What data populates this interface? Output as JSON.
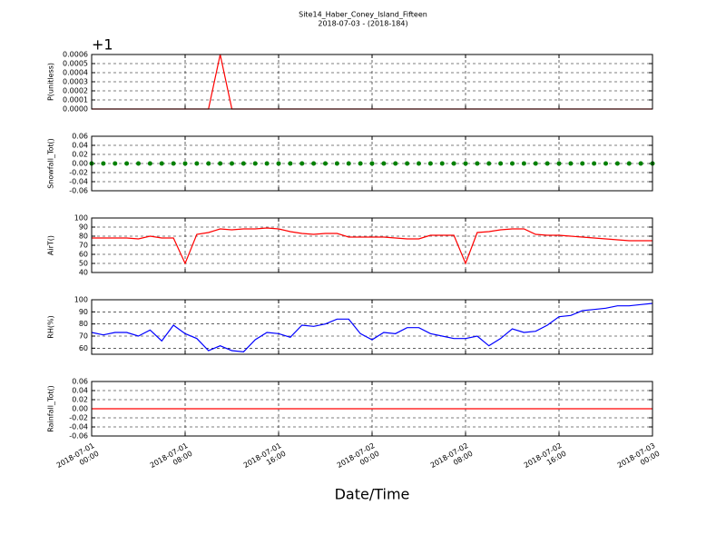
{
  "chart_data": [
    {
      "type": "line",
      "title": "Site14_Haber_Coney_Island_Fifteen",
      "subtitle": "2018-07-03 - (2018-184)",
      "offset_text": "+1",
      "ylabel": "P(unitless)",
      "ylim": [
        0,
        0.0006
      ],
      "yticks": [
        {
          "value": 0,
          "label": "0.0000"
        },
        {
          "value": 0.0001,
          "label": "0.0001"
        },
        {
          "value": 0.0002,
          "label": "0.0002"
        },
        {
          "value": 0.0003,
          "label": "0.0003"
        },
        {
          "value": 0.0004,
          "label": "0.0004"
        },
        {
          "value": 0.0005,
          "label": "0.0005"
        },
        {
          "value": 0.0006,
          "label": "0.0006"
        }
      ],
      "grid": true,
      "color": "#ff0000",
      "x": [
        "2018-07-01 00:00",
        "2018-07-01 01:00",
        "2018-07-01 02:00",
        "2018-07-01 03:00",
        "2018-07-01 04:00",
        "2018-07-01 05:00",
        "2018-07-01 06:00",
        "2018-07-01 07:00",
        "2018-07-01 08:00",
        "2018-07-01 09:00",
        "2018-07-01 10:00",
        "2018-07-01 11:00",
        "2018-07-01 12:00",
        "2018-07-01 13:00",
        "2018-07-01 14:00",
        "2018-07-01 15:00",
        "2018-07-01 16:00",
        "2018-07-01 17:00",
        "2018-07-01 18:00",
        "2018-07-01 19:00",
        "2018-07-01 20:00",
        "2018-07-01 21:00",
        "2018-07-01 22:00",
        "2018-07-01 23:00",
        "2018-07-02 00:00",
        "2018-07-02 01:00",
        "2018-07-02 02:00",
        "2018-07-02 03:00",
        "2018-07-02 04:00",
        "2018-07-02 05:00",
        "2018-07-02 06:00",
        "2018-07-02 07:00",
        "2018-07-02 08:00",
        "2018-07-02 09:00",
        "2018-07-02 10:00",
        "2018-07-02 11:00",
        "2018-07-02 12:00",
        "2018-07-02 13:00",
        "2018-07-02 14:00",
        "2018-07-02 15:00",
        "2018-07-02 16:00",
        "2018-07-02 17:00",
        "2018-07-02 18:00",
        "2018-07-02 19:00",
        "2018-07-02 20:00",
        "2018-07-02 21:00",
        "2018-07-02 22:00",
        "2018-07-02 23:00",
        "2018-07-03 00:00"
      ],
      "values": [
        0,
        0,
        0,
        0,
        0,
        0,
        0,
        0,
        0,
        0,
        0,
        0.0006,
        0,
        0,
        0,
        0,
        0,
        0,
        0,
        0,
        0,
        0,
        0,
        0,
        0,
        0,
        0,
        0,
        0,
        0,
        0,
        0,
        0,
        0,
        0,
        0,
        0,
        0,
        0,
        0,
        0,
        0,
        0,
        0,
        0,
        0,
        0,
        0,
        0
      ]
    },
    {
      "type": "scatter",
      "ylabel": "Snowfall_Tot()",
      "ylim": [
        -0.06,
        0.06
      ],
      "yticks": [
        -0.06,
        -0.04,
        -0.02,
        {
          "value": 0,
          "label": "0.00"
        },
        0.02,
        0.04,
        0.06
      ],
      "grid": true,
      "color": "#008000",
      "x": [
        "2018-07-01 00:00",
        "2018-07-01 01:00",
        "2018-07-01 02:00",
        "2018-07-01 03:00",
        "2018-07-01 04:00",
        "2018-07-01 05:00",
        "2018-07-01 06:00",
        "2018-07-01 07:00",
        "2018-07-01 08:00",
        "2018-07-01 09:00",
        "2018-07-01 10:00",
        "2018-07-01 11:00",
        "2018-07-01 12:00",
        "2018-07-01 13:00",
        "2018-07-01 14:00",
        "2018-07-01 15:00",
        "2018-07-01 16:00",
        "2018-07-01 17:00",
        "2018-07-01 18:00",
        "2018-07-01 19:00",
        "2018-07-01 20:00",
        "2018-07-01 21:00",
        "2018-07-01 22:00",
        "2018-07-01 23:00",
        "2018-07-02 00:00",
        "2018-07-02 01:00",
        "2018-07-02 02:00",
        "2018-07-02 03:00",
        "2018-07-02 04:00",
        "2018-07-02 05:00",
        "2018-07-02 06:00",
        "2018-07-02 07:00",
        "2018-07-02 08:00",
        "2018-07-02 09:00",
        "2018-07-02 10:00",
        "2018-07-02 11:00",
        "2018-07-02 12:00",
        "2018-07-02 13:00",
        "2018-07-02 14:00",
        "2018-07-02 15:00",
        "2018-07-02 16:00",
        "2018-07-02 17:00",
        "2018-07-02 18:00",
        "2018-07-02 19:00",
        "2018-07-02 20:00",
        "2018-07-02 21:00",
        "2018-07-02 22:00",
        "2018-07-02 23:00",
        "2018-07-03 00:00"
      ],
      "values": [
        0,
        0,
        0,
        0,
        0,
        0,
        0,
        0,
        0,
        0,
        0,
        0,
        0,
        0,
        0,
        0,
        0,
        0,
        0,
        0,
        0,
        0,
        0,
        0,
        0,
        0,
        0,
        0,
        0,
        0,
        0,
        0,
        0,
        0,
        0,
        0,
        0,
        0,
        0,
        0,
        0,
        0,
        0,
        0,
        0,
        0,
        0,
        0,
        0
      ]
    },
    {
      "type": "line",
      "ylabel": "AirT()",
      "ylim": [
        40,
        100
      ],
      "yticks": [
        40,
        50,
        60,
        70,
        80,
        90,
        100
      ],
      "grid": true,
      "color": "#ff0000",
      "x": [
        "2018-07-01 00:00",
        "2018-07-01 01:00",
        "2018-07-01 02:00",
        "2018-07-01 03:00",
        "2018-07-01 04:00",
        "2018-07-01 05:00",
        "2018-07-01 06:00",
        "2018-07-01 07:00",
        "2018-07-01 08:00",
        "2018-07-01 09:00",
        "2018-07-01 10:00",
        "2018-07-01 11:00",
        "2018-07-01 12:00",
        "2018-07-01 13:00",
        "2018-07-01 14:00",
        "2018-07-01 15:00",
        "2018-07-01 16:00",
        "2018-07-01 17:00",
        "2018-07-01 18:00",
        "2018-07-01 19:00",
        "2018-07-01 20:00",
        "2018-07-01 21:00",
        "2018-07-01 22:00",
        "2018-07-01 23:00",
        "2018-07-02 00:00",
        "2018-07-02 01:00",
        "2018-07-02 02:00",
        "2018-07-02 03:00",
        "2018-07-02 04:00",
        "2018-07-02 05:00",
        "2018-07-02 06:00",
        "2018-07-02 07:00",
        "2018-07-02 08:00",
        "2018-07-02 09:00",
        "2018-07-02 10:00",
        "2018-07-02 11:00",
        "2018-07-02 12:00",
        "2018-07-02 13:00",
        "2018-07-02 14:00",
        "2018-07-02 15:00",
        "2018-07-02 16:00",
        "2018-07-02 17:00",
        "2018-07-02 18:00",
        "2018-07-02 19:00",
        "2018-07-02 20:00",
        "2018-07-02 21:00",
        "2018-07-02 22:00",
        "2018-07-02 23:00",
        "2018-07-03 00:00"
      ],
      "values": [
        78,
        78,
        78,
        78,
        77,
        80,
        78,
        78,
        50,
        82,
        84,
        88,
        87,
        88,
        88,
        89,
        88,
        85,
        83,
        82,
        83,
        83,
        79,
        79,
        79,
        79,
        78,
        77,
        77,
        81,
        81,
        81,
        50,
        84,
        85,
        87,
        88,
        88,
        82,
        81,
        81,
        80,
        79,
        78,
        77,
        76,
        75,
        75,
        75
      ]
    },
    {
      "type": "line",
      "ylabel": "RH(%)",
      "ylim": [
        55,
        100
      ],
      "yticks": [
        60,
        70,
        80,
        90,
        100
      ],
      "grid": true,
      "color": "#0000ff",
      "x": [
        "2018-07-01 00:00",
        "2018-07-01 01:00",
        "2018-07-01 02:00",
        "2018-07-01 03:00",
        "2018-07-01 04:00",
        "2018-07-01 05:00",
        "2018-07-01 06:00",
        "2018-07-01 07:00",
        "2018-07-01 08:00",
        "2018-07-01 09:00",
        "2018-07-01 10:00",
        "2018-07-01 11:00",
        "2018-07-01 12:00",
        "2018-07-01 13:00",
        "2018-07-01 14:00",
        "2018-07-01 15:00",
        "2018-07-01 16:00",
        "2018-07-01 17:00",
        "2018-07-01 18:00",
        "2018-07-01 19:00",
        "2018-07-01 20:00",
        "2018-07-01 21:00",
        "2018-07-01 22:00",
        "2018-07-01 23:00",
        "2018-07-02 00:00",
        "2018-07-02 01:00",
        "2018-07-02 02:00",
        "2018-07-02 03:00",
        "2018-07-02 04:00",
        "2018-07-02 05:00",
        "2018-07-02 06:00",
        "2018-07-02 07:00",
        "2018-07-02 08:00",
        "2018-07-02 09:00",
        "2018-07-02 10:00",
        "2018-07-02 11:00",
        "2018-07-02 12:00",
        "2018-07-02 13:00",
        "2018-07-02 14:00",
        "2018-07-02 15:00",
        "2018-07-02 16:00",
        "2018-07-02 17:00",
        "2018-07-02 18:00",
        "2018-07-02 19:00",
        "2018-07-02 20:00",
        "2018-07-02 21:00",
        "2018-07-02 22:00",
        "2018-07-02 23:00",
        "2018-07-03 00:00"
      ],
      "values": [
        73,
        71,
        73,
        73,
        70,
        75,
        66,
        79,
        72,
        68,
        58,
        62,
        58,
        57,
        67,
        73,
        72,
        69,
        79,
        78,
        80,
        84,
        84,
        72,
        67,
        73,
        72,
        77,
        77,
        72,
        70,
        68,
        68,
        70,
        62,
        68,
        76,
        73,
        74,
        79,
        86,
        87,
        91,
        92,
        93,
        95,
        95,
        96,
        97
      ]
    },
    {
      "type": "line",
      "ylabel": "Rainfall_Tot()",
      "xlabel": "Date/Time",
      "ylim": [
        -0.06,
        0.06
      ],
      "yticks": [
        -0.06,
        -0.04,
        -0.02,
        {
          "value": 0,
          "label": "0.00"
        },
        0.02,
        0.04,
        0.06
      ],
      "grid": true,
      "color": "#ff0000",
      "xlim": [
        "2018-07-01 00:00",
        "2018-07-03 00:00"
      ],
      "xticks": [
        {
          "value": "2018-07-01 00:00",
          "label": "2018-07-01\n00:00"
        },
        {
          "value": "2018-07-01 08:00",
          "label": "2018-07-01\n08:00"
        },
        {
          "value": "2018-07-01 16:00",
          "label": "2018-07-01\n16:00"
        },
        {
          "value": "2018-07-02 00:00",
          "label": "2018-07-02\n00:00"
        },
        {
          "value": "2018-07-02 08:00",
          "label": "2018-07-02\n08:00"
        },
        {
          "value": "2018-07-02 16:00",
          "label": "2018-07-02\n16:00"
        },
        {
          "value": "2018-07-03 00:00",
          "label": "2018-07-03\n00:00"
        }
      ],
      "x": [
        "2018-07-01 00:00",
        "2018-07-01 01:00",
        "2018-07-01 02:00",
        "2018-07-01 03:00",
        "2018-07-01 04:00",
        "2018-07-01 05:00",
        "2018-07-01 06:00",
        "2018-07-01 07:00",
        "2018-07-01 08:00",
        "2018-07-01 09:00",
        "2018-07-01 10:00",
        "2018-07-01 11:00",
        "2018-07-01 12:00",
        "2018-07-01 13:00",
        "2018-07-01 14:00",
        "2018-07-01 15:00",
        "2018-07-01 16:00",
        "2018-07-01 17:00",
        "2018-07-01 18:00",
        "2018-07-01 19:00",
        "2018-07-01 20:00",
        "2018-07-01 21:00",
        "2018-07-01 22:00",
        "2018-07-01 23:00",
        "2018-07-02 00:00",
        "2018-07-02 01:00",
        "2018-07-02 02:00",
        "2018-07-02 03:00",
        "2018-07-02 04:00",
        "2018-07-02 05:00",
        "2018-07-02 06:00",
        "2018-07-02 07:00",
        "2018-07-02 08:00",
        "2018-07-02 09:00",
        "2018-07-02 10:00",
        "2018-07-02 11:00",
        "2018-07-02 12:00",
        "2018-07-02 13:00",
        "2018-07-02 14:00",
        "2018-07-02 15:00",
        "2018-07-02 16:00",
        "2018-07-02 17:00",
        "2018-07-02 18:00",
        "2018-07-02 19:00",
        "2018-07-02 20:00",
        "2018-07-02 21:00",
        "2018-07-02 22:00",
        "2018-07-02 23:00",
        "2018-07-03 00:00"
      ],
      "values": [
        0,
        0,
        0,
        0,
        0,
        0,
        0,
        0,
        0,
        0,
        0,
        0,
        0,
        0,
        0,
        0,
        0,
        0,
        0,
        0,
        0,
        0,
        0,
        0,
        0,
        0,
        0,
        0,
        0,
        0,
        0,
        0,
        0,
        0,
        0,
        0,
        0,
        0,
        0,
        0,
        0,
        0,
        0,
        0,
        0,
        0,
        0,
        0,
        0
      ]
    }
  ]
}
